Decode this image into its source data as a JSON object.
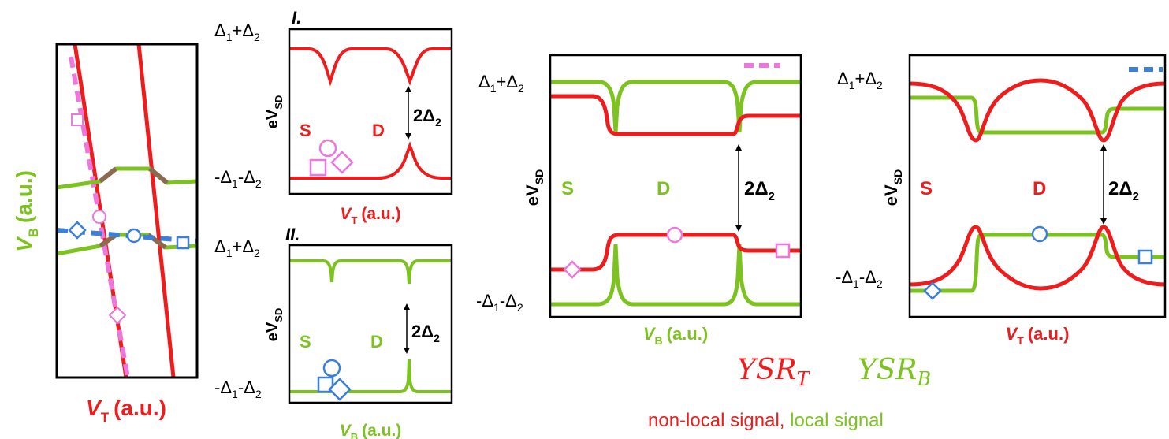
{
  "colors": {
    "red": "#ee1c1c",
    "green": "#7dc31f",
    "pink": "#ee77dd",
    "blue": "#3b7fd6",
    "brown": "#8b6b4f",
    "black": "#000000"
  },
  "map": {
    "y_axis_letter": "V",
    "y_axis_sub": "B",
    "y_axis_unit": "(a.u.)",
    "x_axis_letter": "V",
    "x_axis_sub": "T",
    "x_axis_unit": "(a.u.)"
  },
  "panel_I": {
    "tag": "I.",
    "top_level": {
      "a": "Δ",
      "a_sub": "1",
      "b": "+Δ",
      "b_sub": "2"
    },
    "bottom_level": {
      "a": "-Δ",
      "a_sub": "1",
      "b": "-Δ",
      "b_sub": "2"
    },
    "y_label_main": "eV",
    "y_label_sub": "SD",
    "s_label": "S",
    "d_label": "D",
    "gap_main": "2Δ",
    "gap_sub": "2",
    "x_letter": "V",
    "x_sub": "T",
    "x_unit": "(a.u.)"
  },
  "panel_II": {
    "tag": "II.",
    "top_level": {
      "a": "Δ",
      "a_sub": "1",
      "b": "+Δ",
      "b_sub": "2"
    },
    "bottom_level": {
      "a": "-Δ",
      "a_sub": "1",
      "b": "-Δ",
      "b_sub": "2"
    },
    "y_label_main": "eV",
    "y_label_sub": "SD",
    "s_label": "S",
    "d_label": "D",
    "gap_main": "2Δ",
    "gap_sub": "2",
    "x_letter": "V",
    "x_sub": "B",
    "x_unit": "(a.u.)"
  },
  "panel_vb": {
    "top_level": {
      "a": "Δ",
      "a_sub": "1",
      "b": "+Δ",
      "b_sub": "2"
    },
    "bottom_level": {
      "a": "-Δ",
      "a_sub": "1",
      "b": "-Δ",
      "b_sub": "2"
    },
    "y_label_main": "eV",
    "y_label_sub": "SD",
    "s_label": "S",
    "d_label": "D",
    "gap_main": "2Δ",
    "gap_sub": "2",
    "x_letter": "V",
    "x_sub": "B",
    "x_unit": "(a.u.)"
  },
  "panel_vt": {
    "top_level": {
      "a": "Δ",
      "a_sub": "1",
      "b": "+Δ",
      "b_sub": "2"
    },
    "bottom_level": {
      "a": "-Δ",
      "a_sub": "1",
      "b": "-Δ",
      "b_sub": "2"
    },
    "y_label_main": "eV",
    "y_label_sub": "SD",
    "s_label": "S",
    "d_label": "D",
    "gap_main": "2Δ",
    "gap_sub": "2",
    "x_letter": "V",
    "x_sub": "T",
    "x_unit": "(a.u.)"
  },
  "legend": {
    "ysr_t": "YSR",
    "ysr_t_sub": "T",
    "ysr_b": "YSR",
    "ysr_b_sub": "B",
    "nonlocal": "non-local signal,",
    "local": "local signal"
  },
  "icons": [
    "square-marker-icon",
    "circle-marker-icon",
    "diamond-marker-icon"
  ]
}
